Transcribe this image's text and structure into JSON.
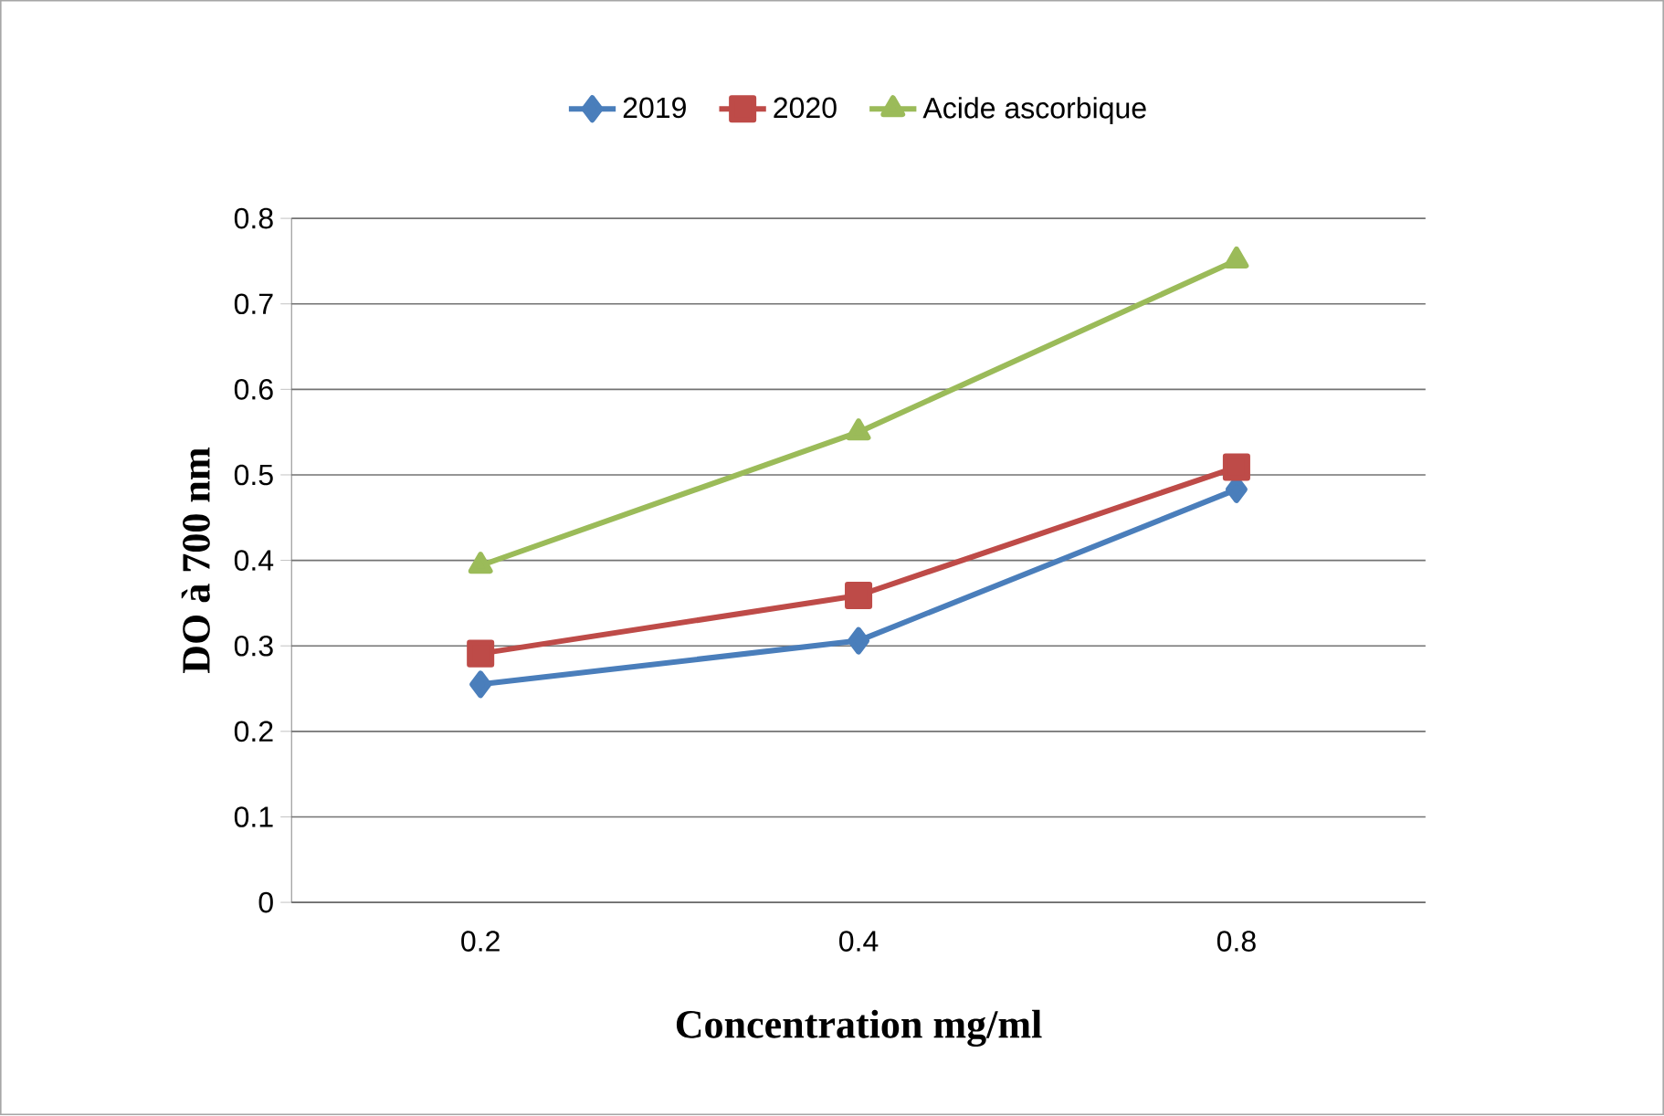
{
  "chart_data": {
    "type": "line",
    "xlabel": "Concentration mg/ml",
    "ylabel": "DO à 700 nm",
    "categories": [
      "0.2",
      "0.4",
      "0.8"
    ],
    "series": [
      {
        "name": "2019",
        "color": "#4a7ebb",
        "marker": "diamond",
        "values": [
          0.255,
          0.306,
          0.483
        ]
      },
      {
        "name": "2020",
        "color": "#be4b48",
        "marker": "square",
        "values": [
          0.291,
          0.359,
          0.509
        ]
      },
      {
        "name": "Acide ascorbique",
        "color": "#9bbb59",
        "marker": "triangle",
        "values": [
          0.394,
          0.55,
          0.751
        ]
      }
    ],
    "ylim": [
      0,
      0.8
    ],
    "yticks": [
      0,
      0.1,
      0.2,
      0.3,
      0.4,
      0.5,
      0.6,
      0.7,
      0.8
    ],
    "grid": "y",
    "legend": "top",
    "line_style": "solid"
  }
}
